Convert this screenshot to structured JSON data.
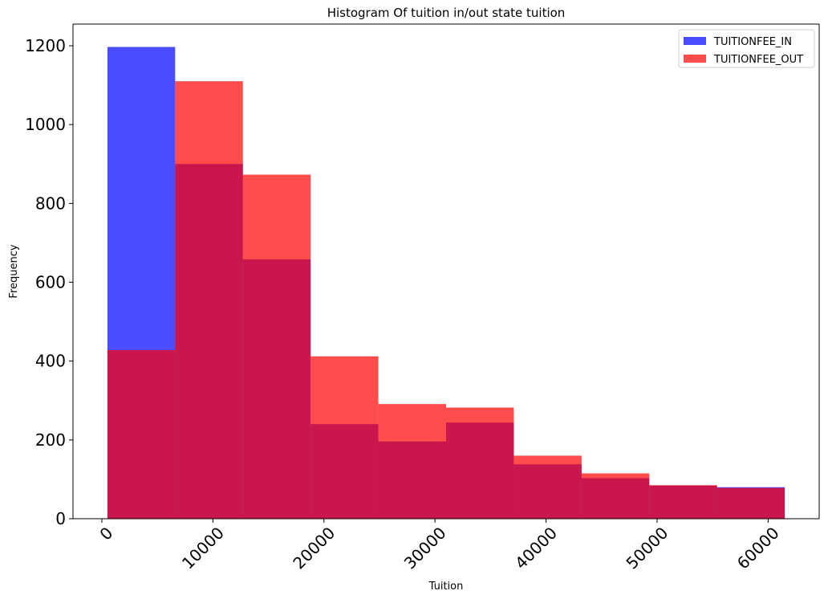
{
  "chart_data": {
    "type": "bar",
    "subtype": "histogram",
    "title": "Histogram Of tuition in/out state tuition",
    "xlabel": "Tuition",
    "ylabel": "Frequency",
    "xlim": [
      -2600,
      64600
    ],
    "ylim": [
      0,
      1255
    ],
    "x_ticks": [
      0,
      10000,
      20000,
      30000,
      40000,
      50000,
      60000
    ],
    "x_tick_labels": [
      "0",
      "10000",
      "20000",
      "30000",
      "40000",
      "50000",
      "60000"
    ],
    "y_ticks": [
      0,
      200,
      400,
      600,
      800,
      1000,
      1200
    ],
    "y_tick_labels": [
      "0",
      "200",
      "400",
      "600",
      "800",
      "1000",
      "1200"
    ],
    "x_tick_rotation": 45,
    "grid": false,
    "legend_position": "top-right",
    "bin_edges": [
      500,
      6600,
      12700,
      18800,
      24900,
      31000,
      37100,
      43200,
      49300,
      55400,
      61500
    ],
    "series": [
      {
        "name": "TUITIONFEE_IN",
        "color": "#0000ff",
        "alpha": 0.7,
        "values": [
          1197,
          900,
          658,
          240,
          196,
          244,
          138,
          103,
          84,
          80
        ]
      },
      {
        "name": "TUITIONFEE_OUT",
        "color": "#ff0000",
        "alpha": 0.7,
        "values": [
          428,
          1110,
          873,
          412,
          291,
          282,
          160,
          115,
          85,
          78
        ]
      }
    ]
  }
}
